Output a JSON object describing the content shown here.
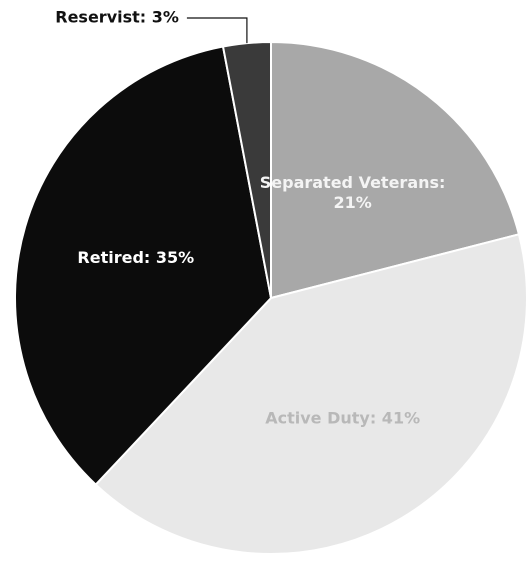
{
  "chart_data": {
    "type": "pie",
    "values": [
      21,
      41,
      35,
      3
    ],
    "value_labels": [
      "Separated Veterans: 21%",
      "Active Duty: 41%",
      "Retired: 35%",
      "Reservist: 3%"
    ],
    "colors": [
      "#a8a8a8",
      "#e8e8e8",
      "#0c0c0c",
      "#3a3a3a"
    ],
    "start_angle": 0,
    "direction": "clockwise"
  }
}
